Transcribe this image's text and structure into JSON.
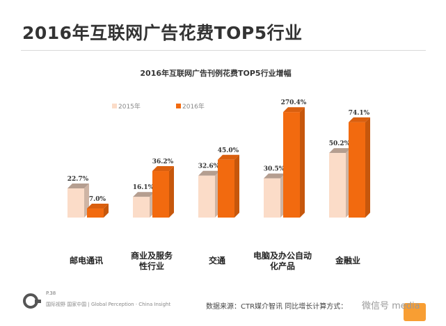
{
  "page": {
    "title": "2016年互联网广告花费TOP5行业"
  },
  "footer": {
    "page_number": "P.38",
    "org": "国际视野 国家中国 | Global Perception · China Insight",
    "source": "数据来源：CTR媒介智讯   同比增长计算方式：",
    "watermark": "微信号 media"
  },
  "colors": {
    "series_2015": "#fbdcc8",
    "series_2016": "#f26a0f",
    "title_text": "#333333"
  },
  "chart_data": {
    "type": "bar",
    "title": "2016年互联网广告刊例花费TOP5行业增幅",
    "categories": [
      "邮电通讯",
      "商业及服务性行业",
      "交通",
      "电脑及办公自动化产品",
      "金融业"
    ],
    "category_lines": [
      [
        "邮电通讯"
      ],
      [
        "商业及服务",
        "性行业"
      ],
      [
        "交通"
      ],
      [
        "电脑及办公自动",
        "化产品"
      ],
      [
        "金融业"
      ]
    ],
    "series": [
      {
        "name": "2015年",
        "values": [
          22.7,
          16.1,
          32.6,
          30.5,
          50.2
        ],
        "labels": [
          "22.7%",
          "16.1%",
          "32.6%",
          "30.5%",
          "50.2%"
        ]
      },
      {
        "name": "2016年",
        "values": [
          7.0,
          36.2,
          45.0,
          270.4,
          74.1
        ],
        "labels": [
          "7.0%",
          "36.2%",
          "45.0%",
          "270.4%",
          "74.1%"
        ]
      }
    ],
    "legend_position": "top-left",
    "grid": false,
    "ylabel": "",
    "xlabel": ""
  }
}
